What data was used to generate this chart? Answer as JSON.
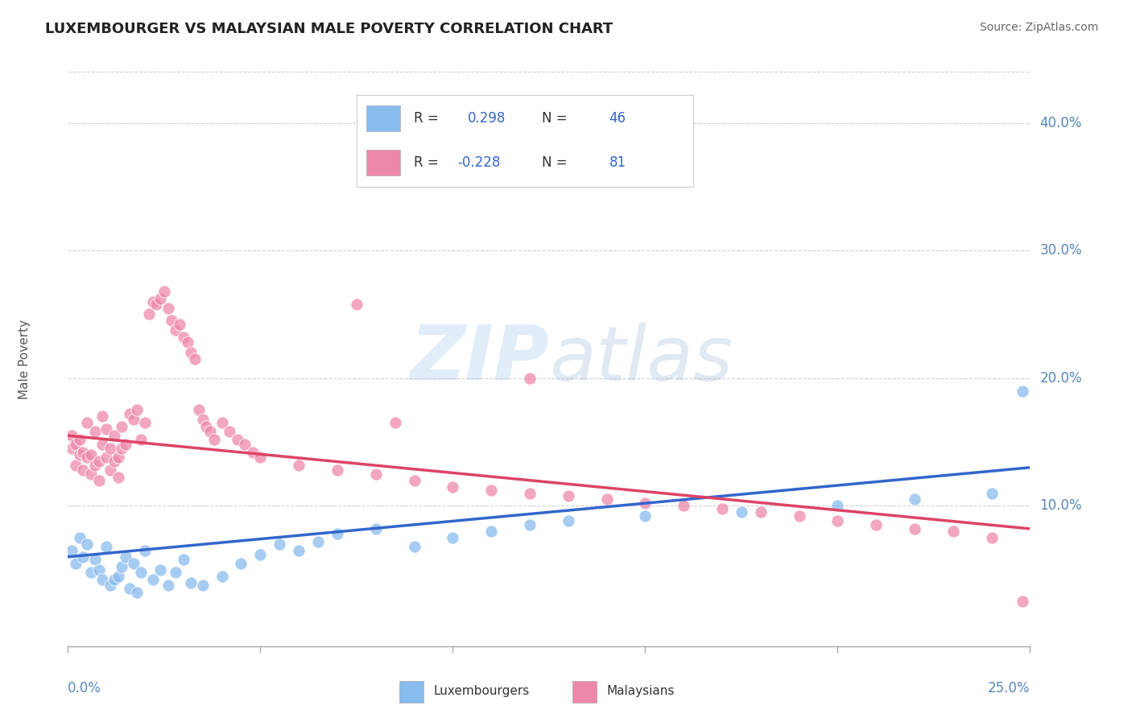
{
  "title": "LUXEMBOURGER VS MALAYSIAN MALE POVERTY CORRELATION CHART",
  "source": "Source: ZipAtlas.com",
  "ylabel": "Male Poverty",
  "xmin": 0.0,
  "xmax": 0.25,
  "ymin": -0.01,
  "ymax": 0.44,
  "yticks": [
    0.1,
    0.2,
    0.3,
    0.4
  ],
  "ytick_labels": [
    "10.0%",
    "20.0%",
    "30.0%",
    "40.0%"
  ],
  "watermark": "ZIPatlas",
  "lux_color": "#88bbee",
  "mal_color": "#ee88aa",
  "lux_line_color": "#3366cc",
  "mal_line_color": "#dd4466",
  "background_color": "#ffffff",
  "grid_color": "#cccccc",
  "title_color": "#222222",
  "axis_label_color": "#5588bb",
  "lux_R": 0.298,
  "lux_N": 46,
  "mal_R": -0.228,
  "mal_N": 81,
  "lux_trend_start": 0.06,
  "lux_trend_end": 0.13,
  "mal_trend_start": 0.155,
  "mal_trend_end": 0.082,
  "lux_scatter": [
    [
      0.001,
      0.065
    ],
    [
      0.002,
      0.055
    ],
    [
      0.003,
      0.075
    ],
    [
      0.004,
      0.06
    ],
    [
      0.005,
      0.07
    ],
    [
      0.006,
      0.048
    ],
    [
      0.007,
      0.058
    ],
    [
      0.008,
      0.05
    ],
    [
      0.009,
      0.042
    ],
    [
      0.01,
      0.068
    ],
    [
      0.011,
      0.038
    ],
    [
      0.012,
      0.042
    ],
    [
      0.013,
      0.045
    ],
    [
      0.014,
      0.052
    ],
    [
      0.015,
      0.06
    ],
    [
      0.016,
      0.035
    ],
    [
      0.017,
      0.055
    ],
    [
      0.018,
      0.032
    ],
    [
      0.019,
      0.048
    ],
    [
      0.02,
      0.065
    ],
    [
      0.022,
      0.042
    ],
    [
      0.024,
      0.05
    ],
    [
      0.026,
      0.038
    ],
    [
      0.028,
      0.048
    ],
    [
      0.03,
      0.058
    ],
    [
      0.032,
      0.04
    ],
    [
      0.035,
      0.038
    ],
    [
      0.04,
      0.045
    ],
    [
      0.045,
      0.055
    ],
    [
      0.05,
      0.062
    ],
    [
      0.055,
      0.07
    ],
    [
      0.06,
      0.065
    ],
    [
      0.065,
      0.072
    ],
    [
      0.07,
      0.078
    ],
    [
      0.08,
      0.082
    ],
    [
      0.09,
      0.068
    ],
    [
      0.1,
      0.075
    ],
    [
      0.11,
      0.08
    ],
    [
      0.12,
      0.085
    ],
    [
      0.13,
      0.088
    ],
    [
      0.15,
      0.092
    ],
    [
      0.175,
      0.095
    ],
    [
      0.2,
      0.1
    ],
    [
      0.22,
      0.105
    ],
    [
      0.24,
      0.11
    ],
    [
      0.248,
      0.19
    ]
  ],
  "mal_scatter": [
    [
      0.001,
      0.155
    ],
    [
      0.001,
      0.145
    ],
    [
      0.002,
      0.148
    ],
    [
      0.002,
      0.132
    ],
    [
      0.003,
      0.152
    ],
    [
      0.003,
      0.14
    ],
    [
      0.004,
      0.142
    ],
    [
      0.004,
      0.128
    ],
    [
      0.005,
      0.165
    ],
    [
      0.005,
      0.138
    ],
    [
      0.006,
      0.14
    ],
    [
      0.006,
      0.125
    ],
    [
      0.007,
      0.158
    ],
    [
      0.007,
      0.132
    ],
    [
      0.008,
      0.135
    ],
    [
      0.008,
      0.12
    ],
    [
      0.009,
      0.17
    ],
    [
      0.009,
      0.148
    ],
    [
      0.01,
      0.16
    ],
    [
      0.01,
      0.138
    ],
    [
      0.011,
      0.145
    ],
    [
      0.011,
      0.128
    ],
    [
      0.012,
      0.155
    ],
    [
      0.012,
      0.135
    ],
    [
      0.013,
      0.138
    ],
    [
      0.013,
      0.122
    ],
    [
      0.014,
      0.162
    ],
    [
      0.014,
      0.145
    ],
    [
      0.015,
      0.148
    ],
    [
      0.016,
      0.172
    ],
    [
      0.017,
      0.168
    ],
    [
      0.018,
      0.175
    ],
    [
      0.019,
      0.152
    ],
    [
      0.02,
      0.165
    ],
    [
      0.021,
      0.25
    ],
    [
      0.022,
      0.26
    ],
    [
      0.023,
      0.258
    ],
    [
      0.024,
      0.262
    ],
    [
      0.025,
      0.268
    ],
    [
      0.026,
      0.255
    ],
    [
      0.027,
      0.245
    ],
    [
      0.028,
      0.238
    ],
    [
      0.029,
      0.242
    ],
    [
      0.03,
      0.232
    ],
    [
      0.031,
      0.228
    ],
    [
      0.032,
      0.22
    ],
    [
      0.033,
      0.215
    ],
    [
      0.034,
      0.175
    ],
    [
      0.035,
      0.168
    ],
    [
      0.036,
      0.162
    ],
    [
      0.037,
      0.158
    ],
    [
      0.038,
      0.152
    ],
    [
      0.04,
      0.165
    ],
    [
      0.042,
      0.158
    ],
    [
      0.044,
      0.152
    ],
    [
      0.046,
      0.148
    ],
    [
      0.048,
      0.142
    ],
    [
      0.05,
      0.138
    ],
    [
      0.06,
      0.132
    ],
    [
      0.07,
      0.128
    ],
    [
      0.075,
      0.258
    ],
    [
      0.08,
      0.125
    ],
    [
      0.09,
      0.12
    ],
    [
      0.1,
      0.115
    ],
    [
      0.11,
      0.112
    ],
    [
      0.12,
      0.11
    ],
    [
      0.13,
      0.108
    ],
    [
      0.14,
      0.105
    ],
    [
      0.15,
      0.102
    ],
    [
      0.16,
      0.1
    ],
    [
      0.17,
      0.098
    ],
    [
      0.18,
      0.095
    ],
    [
      0.19,
      0.092
    ],
    [
      0.2,
      0.088
    ],
    [
      0.21,
      0.085
    ],
    [
      0.22,
      0.082
    ],
    [
      0.23,
      0.08
    ],
    [
      0.24,
      0.075
    ],
    [
      0.248,
      0.025
    ],
    [
      0.12,
      0.2
    ],
    [
      0.085,
      0.165
    ]
  ]
}
